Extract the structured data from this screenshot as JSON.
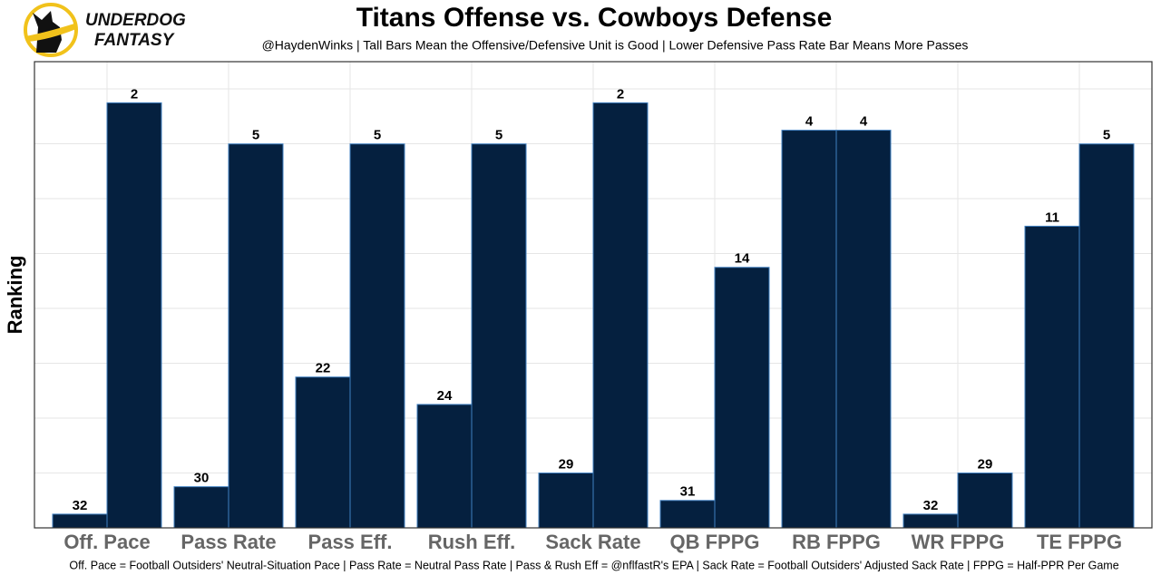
{
  "logo": {
    "line1": "UNDERDOG",
    "line2": "FANTASY"
  },
  "chart_data": {
    "type": "bar",
    "title": "Titans Offense vs. Cowboys Defense",
    "subtitle": "@HaydenWinks | Tall Bars Mean the Offensive/Defensive Unit is Good | Lower Defensive Pass Rate Bar Means More Passes",
    "y_label": "Ranking",
    "caption": "Off. Pace = Football Outsiders' Neutral-Situation Pace | Pass Rate = Neutral Pass Rate | Pass & Rush Eff = @nflfastR's EPA | Sack Rate = Football Outsiders' Adjusted Sack Rate | FPPG = Half-PPR Per Game",
    "categories": [
      "Off. Pace",
      "Pass Rate",
      "Pass Eff.",
      "Rush Eff.",
      "Sack Rate",
      "QB FPPG",
      "RB FPPG",
      "WR FPPG",
      "TE FPPG"
    ],
    "series": [
      {
        "color": "#05203f",
        "values": [
          32,
          30,
          22,
          24,
          29,
          31,
          4,
          32,
          11
        ]
      },
      {
        "color": "#05203f",
        "values": [
          2,
          5,
          5,
          5,
          2,
          14,
          4,
          29,
          5
        ]
      }
    ],
    "ylim": [
      33,
      -1
    ],
    "grid": true
  }
}
